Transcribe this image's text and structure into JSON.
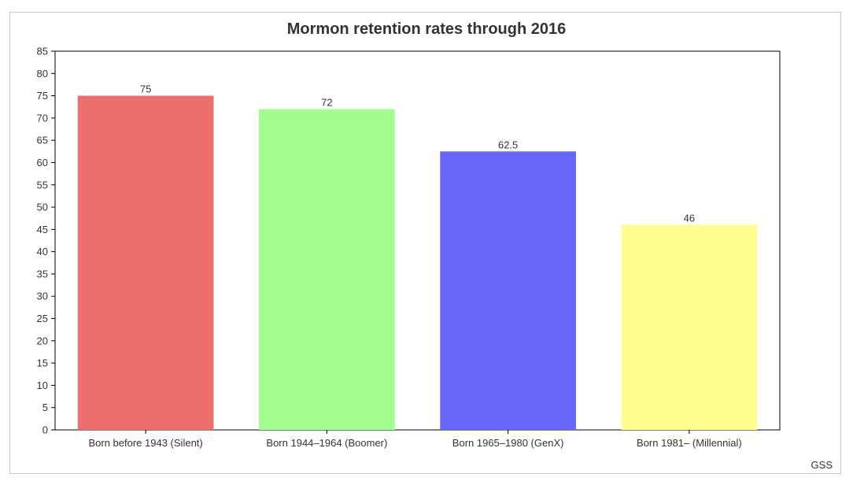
{
  "chart_data": {
    "type": "bar",
    "title": "Mormon retention rates through 2016",
    "categories": [
      "Born before 1943 (Silent)",
      "Born 1944–1964 (Boomer)",
      "Born 1965–1980 (GenX)",
      "Born 1981– (Millennial)"
    ],
    "values": [
      75,
      72,
      62.5,
      46
    ],
    "value_labels": [
      "75",
      "72",
      "62.5",
      "46"
    ],
    "colors": [
      "#ed6f6b",
      "#a2fe8f",
      "#6666f7",
      "#fefe8e"
    ],
    "ylim": [
      0,
      85
    ],
    "yticks": [
      0,
      5,
      10,
      15,
      20,
      25,
      30,
      35,
      40,
      45,
      50,
      55,
      60,
      65,
      70,
      75,
      80,
      85
    ],
    "xlabel": "",
    "ylabel": "",
    "grid": false,
    "legend": "none",
    "source": "GSS"
  }
}
